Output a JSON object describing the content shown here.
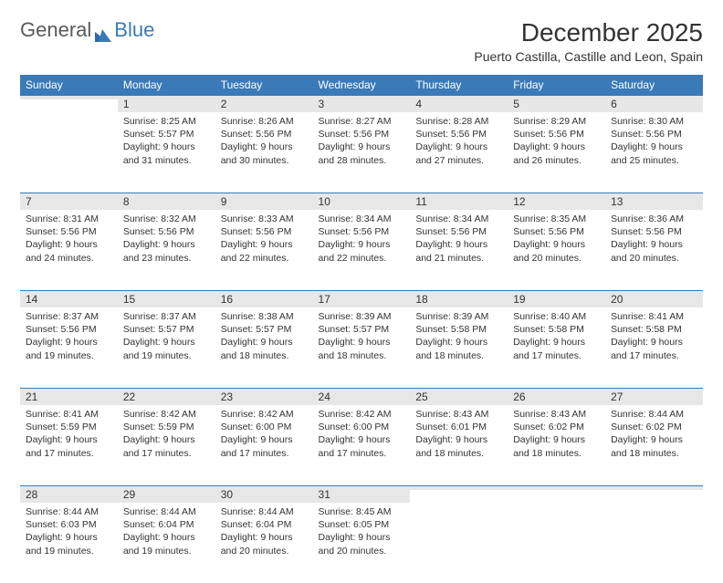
{
  "brand": {
    "part1": "General",
    "part2": "Blue"
  },
  "title": "December 2025",
  "location": "Puerto Castilla, Castille and Leon, Spain",
  "colors": {
    "accent": "#3a7ab8",
    "day_bg": "#e7e7e7",
    "text": "#333333",
    "bg": "#ffffff"
  },
  "weekdays": [
    "Sunday",
    "Monday",
    "Tuesday",
    "Wednesday",
    "Thursday",
    "Friday",
    "Saturday"
  ],
  "weeks": [
    [
      null,
      {
        "n": "1",
        "sr": "8:25 AM",
        "ss": "5:57 PM",
        "dl": "9 hours and 31 minutes."
      },
      {
        "n": "2",
        "sr": "8:26 AM",
        "ss": "5:56 PM",
        "dl": "9 hours and 30 minutes."
      },
      {
        "n": "3",
        "sr": "8:27 AM",
        "ss": "5:56 PM",
        "dl": "9 hours and 28 minutes."
      },
      {
        "n": "4",
        "sr": "8:28 AM",
        "ss": "5:56 PM",
        "dl": "9 hours and 27 minutes."
      },
      {
        "n": "5",
        "sr": "8:29 AM",
        "ss": "5:56 PM",
        "dl": "9 hours and 26 minutes."
      },
      {
        "n": "6",
        "sr": "8:30 AM",
        "ss": "5:56 PM",
        "dl": "9 hours and 25 minutes."
      }
    ],
    [
      {
        "n": "7",
        "sr": "8:31 AM",
        "ss": "5:56 PM",
        "dl": "9 hours and 24 minutes."
      },
      {
        "n": "8",
        "sr": "8:32 AM",
        "ss": "5:56 PM",
        "dl": "9 hours and 23 minutes."
      },
      {
        "n": "9",
        "sr": "8:33 AM",
        "ss": "5:56 PM",
        "dl": "9 hours and 22 minutes."
      },
      {
        "n": "10",
        "sr": "8:34 AM",
        "ss": "5:56 PM",
        "dl": "9 hours and 22 minutes."
      },
      {
        "n": "11",
        "sr": "8:34 AM",
        "ss": "5:56 PM",
        "dl": "9 hours and 21 minutes."
      },
      {
        "n": "12",
        "sr": "8:35 AM",
        "ss": "5:56 PM",
        "dl": "9 hours and 20 minutes."
      },
      {
        "n": "13",
        "sr": "8:36 AM",
        "ss": "5:56 PM",
        "dl": "9 hours and 20 minutes."
      }
    ],
    [
      {
        "n": "14",
        "sr": "8:37 AM",
        "ss": "5:56 PM",
        "dl": "9 hours and 19 minutes."
      },
      {
        "n": "15",
        "sr": "8:37 AM",
        "ss": "5:57 PM",
        "dl": "9 hours and 19 minutes."
      },
      {
        "n": "16",
        "sr": "8:38 AM",
        "ss": "5:57 PM",
        "dl": "9 hours and 18 minutes."
      },
      {
        "n": "17",
        "sr": "8:39 AM",
        "ss": "5:57 PM",
        "dl": "9 hours and 18 minutes."
      },
      {
        "n": "18",
        "sr": "8:39 AM",
        "ss": "5:58 PM",
        "dl": "9 hours and 18 minutes."
      },
      {
        "n": "19",
        "sr": "8:40 AM",
        "ss": "5:58 PM",
        "dl": "9 hours and 17 minutes."
      },
      {
        "n": "20",
        "sr": "8:41 AM",
        "ss": "5:58 PM",
        "dl": "9 hours and 17 minutes."
      }
    ],
    [
      {
        "n": "21",
        "sr": "8:41 AM",
        "ss": "5:59 PM",
        "dl": "9 hours and 17 minutes."
      },
      {
        "n": "22",
        "sr": "8:42 AM",
        "ss": "5:59 PM",
        "dl": "9 hours and 17 minutes."
      },
      {
        "n": "23",
        "sr": "8:42 AM",
        "ss": "6:00 PM",
        "dl": "9 hours and 17 minutes."
      },
      {
        "n": "24",
        "sr": "8:42 AM",
        "ss": "6:00 PM",
        "dl": "9 hours and 17 minutes."
      },
      {
        "n": "25",
        "sr": "8:43 AM",
        "ss": "6:01 PM",
        "dl": "9 hours and 18 minutes."
      },
      {
        "n": "26",
        "sr": "8:43 AM",
        "ss": "6:02 PM",
        "dl": "9 hours and 18 minutes."
      },
      {
        "n": "27",
        "sr": "8:44 AM",
        "ss": "6:02 PM",
        "dl": "9 hours and 18 minutes."
      }
    ],
    [
      {
        "n": "28",
        "sr": "8:44 AM",
        "ss": "6:03 PM",
        "dl": "9 hours and 19 minutes."
      },
      {
        "n": "29",
        "sr": "8:44 AM",
        "ss": "6:04 PM",
        "dl": "9 hours and 19 minutes."
      },
      {
        "n": "30",
        "sr": "8:44 AM",
        "ss": "6:04 PM",
        "dl": "9 hours and 20 minutes."
      },
      {
        "n": "31",
        "sr": "8:45 AM",
        "ss": "6:05 PM",
        "dl": "9 hours and 20 minutes."
      },
      null,
      null,
      null
    ]
  ],
  "labels": {
    "sunrise": "Sunrise:",
    "sunset": "Sunset:",
    "daylight": "Daylight:"
  }
}
